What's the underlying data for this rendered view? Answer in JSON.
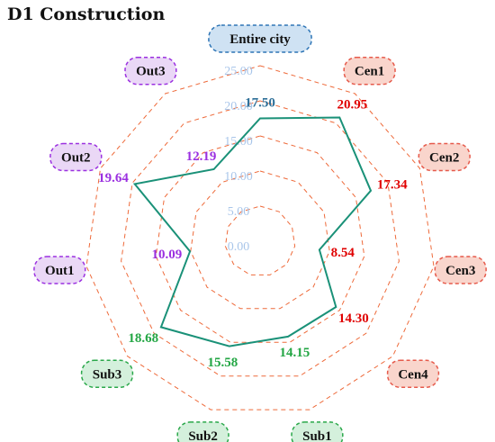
{
  "chart_data": {
    "type": "radar",
    "title": "D1 Construction",
    "categories": [
      "Entire city",
      "Cen1",
      "Cen2",
      "Cen3",
      "Cen4",
      "Sub1",
      "Sub2",
      "Sub3",
      "Out1",
      "Out2",
      "Out3"
    ],
    "groups": [
      "city",
      "cen",
      "cen",
      "cen",
      "cen",
      "sub",
      "sub",
      "sub",
      "out",
      "out",
      "out"
    ],
    "values": [
      17.5,
      20.95,
      17.34,
      8.54,
      14.3,
      14.15,
      15.58,
      18.68,
      10.09,
      19.64,
      12.19
    ],
    "value_labels": [
      "17.50",
      "20.95",
      "17.34",
      "8.54",
      "14.30",
      "14.15",
      "15.58",
      "18.68",
      "10.09",
      "19.64",
      "12.19"
    ],
    "tick_values": [
      0,
      5,
      10,
      15,
      20,
      25
    ],
    "tick_labels": [
      "0.00",
      "5.00",
      "10.00",
      "15.00",
      "20.00",
      "25.00"
    ],
    "rlim": [
      0,
      25
    ],
    "series_color": "#1a9178",
    "grid_color": "#ee6a3a",
    "tick_color": "#a9c6ea",
    "group_colors": {
      "city": {
        "fill": "#cfe2f3",
        "stroke": "#2e75b6",
        "text": "#2e6f98"
      },
      "cen": {
        "fill": "#f9d5cc",
        "stroke": "#e65a4b",
        "text": "#e00000"
      },
      "sub": {
        "fill": "#d4f0dc",
        "stroke": "#2aa84a",
        "text": "#23a644"
      },
      "out": {
        "fill": "#ead8f6",
        "stroke": "#9b30e0",
        "text": "#9b30e0"
      }
    }
  }
}
